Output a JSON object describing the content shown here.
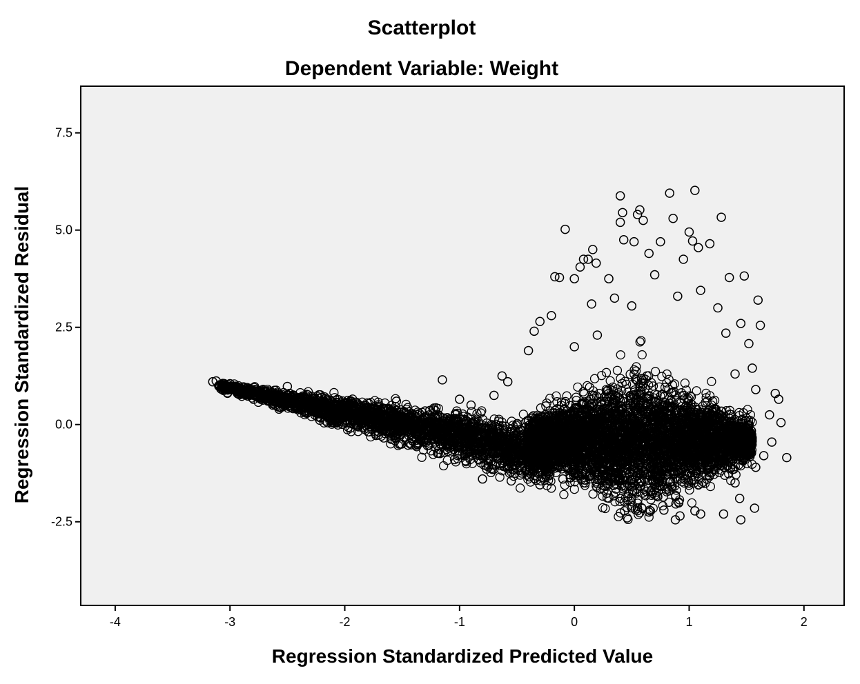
{
  "chart_data": {
    "type": "scatter",
    "title": "Scatterplot",
    "subtitle": "Dependent Variable: Weight",
    "xlabel": "Regression Standardized Predicted Value",
    "ylabel": "Regression Standardized Residual",
    "xlim": [
      -4.3,
      2.35
    ],
    "ylim": [
      -4.65,
      8.7
    ],
    "x_ticks": [
      -4,
      -3,
      -2,
      -1,
      0,
      1,
      2
    ],
    "x_tick_labels": [
      "-4",
      "-3",
      "-2",
      "-1",
      "0",
      "1",
      "2"
    ],
    "y_ticks": [
      7.5,
      5.0,
      2.5,
      0.0,
      -2.5
    ],
    "y_tick_labels": [
      "7.5",
      "5.0",
      "2.5",
      "0.0",
      "-2.5"
    ],
    "grid": false,
    "legend": "none",
    "plot_background": "#f0f0f0",
    "marker": "open-circle",
    "marker_color": "#000000",
    "series": [
      {
        "values": [
          [
            -3.15,
            1.1
          ],
          [
            -3.12,
            1.12
          ],
          [
            -3.05,
            1.02
          ],
          [
            -3.0,
            1.05
          ],
          [
            -2.95,
            0.98
          ],
          [
            -2.85,
            0.95
          ],
          [
            -2.7,
            0.85
          ],
          [
            -2.6,
            0.8
          ],
          [
            -2.5,
            0.98
          ],
          [
            -2.4,
            0.62
          ],
          [
            -2.2,
            0.7
          ],
          [
            -1.8,
            0.45
          ],
          [
            -1.55,
            0.6
          ],
          [
            -1.15,
            1.15
          ],
          [
            -1.0,
            0.65
          ],
          [
            -0.63,
            1.25
          ],
          [
            -0.58,
            1.1
          ],
          [
            -0.4,
            1.9
          ],
          [
            -0.3,
            2.65
          ],
          [
            -0.35,
            2.4
          ],
          [
            -0.2,
            2.8
          ],
          [
            -0.17,
            3.8
          ],
          [
            -0.13,
            3.78
          ],
          [
            0.08,
            4.25
          ],
          [
            0.12,
            4.25
          ],
          [
            0.16,
            4.5
          ],
          [
            0.19,
            4.15
          ],
          [
            0.05,
            4.05
          ],
          [
            0.0,
            3.75
          ],
          [
            -0.08,
            5.02
          ],
          [
            0.3,
            3.75
          ],
          [
            0.35,
            3.25
          ],
          [
            0.4,
            5.88
          ],
          [
            0.42,
            5.45
          ],
          [
            0.4,
            5.2
          ],
          [
            0.43,
            4.75
          ],
          [
            0.52,
            4.7
          ],
          [
            0.57,
            5.52
          ],
          [
            0.55,
            5.4
          ],
          [
            0.6,
            5.25
          ],
          [
            0.65,
            4.4
          ],
          [
            0.75,
            4.7
          ],
          [
            0.83,
            5.95
          ],
          [
            0.86,
            5.3
          ],
          [
            0.95,
            4.25
          ],
          [
            1.05,
            6.02
          ],
          [
            1.0,
            4.95
          ],
          [
            1.03,
            4.72
          ],
          [
            1.08,
            4.55
          ],
          [
            1.18,
            4.65
          ],
          [
            1.28,
            5.33
          ],
          [
            1.35,
            3.78
          ],
          [
            1.48,
            3.82
          ],
          [
            1.6,
            3.2
          ],
          [
            1.62,
            2.55
          ],
          [
            1.45,
            2.6
          ],
          [
            1.52,
            2.08
          ],
          [
            1.55,
            1.45
          ],
          [
            1.58,
            0.9
          ],
          [
            1.7,
            0.25
          ],
          [
            1.75,
            0.8
          ],
          [
            1.78,
            0.65
          ],
          [
            1.8,
            0.05
          ],
          [
            1.85,
            -0.85
          ],
          [
            1.72,
            -0.45
          ],
          [
            1.65,
            -0.8
          ],
          [
            1.58,
            -1.1
          ],
          [
            1.57,
            -2.15
          ],
          [
            1.45,
            -2.45
          ],
          [
            1.3,
            -2.3
          ],
          [
            1.1,
            -2.3
          ],
          [
            1.05,
            -2.22
          ],
          [
            0.92,
            -2.35
          ],
          [
            0.88,
            -2.45
          ],
          [
            0.78,
            -2.2
          ],
          [
            0.65,
            -2.25
          ],
          [
            0.55,
            -2.15
          ],
          [
            0.46,
            -2.4
          ],
          [
            0.4,
            -1.9
          ],
          [
            1.44,
            -1.9
          ],
          [
            1.4,
            -1.5
          ],
          [
            -0.8,
            -1.4
          ],
          [
            -0.55,
            -1.45
          ],
          [
            -0.3,
            -1.55
          ],
          [
            -0.1,
            -1.4
          ],
          [
            0.0,
            2.0
          ],
          [
            0.2,
            2.3
          ],
          [
            0.15,
            3.1
          ],
          [
            0.5,
            3.05
          ],
          [
            0.7,
            3.85
          ],
          [
            0.9,
            3.3
          ],
          [
            1.1,
            3.45
          ],
          [
            1.25,
            3.0
          ],
          [
            1.32,
            2.35
          ],
          [
            1.4,
            1.3
          ],
          [
            -0.7,
            0.75
          ],
          [
            -0.9,
            0.5
          ],
          [
            -1.3,
            0.35
          ],
          [
            -1.9,
            0.35
          ],
          [
            -2.1,
            0.05
          ]
        ]
      }
    ]
  }
}
